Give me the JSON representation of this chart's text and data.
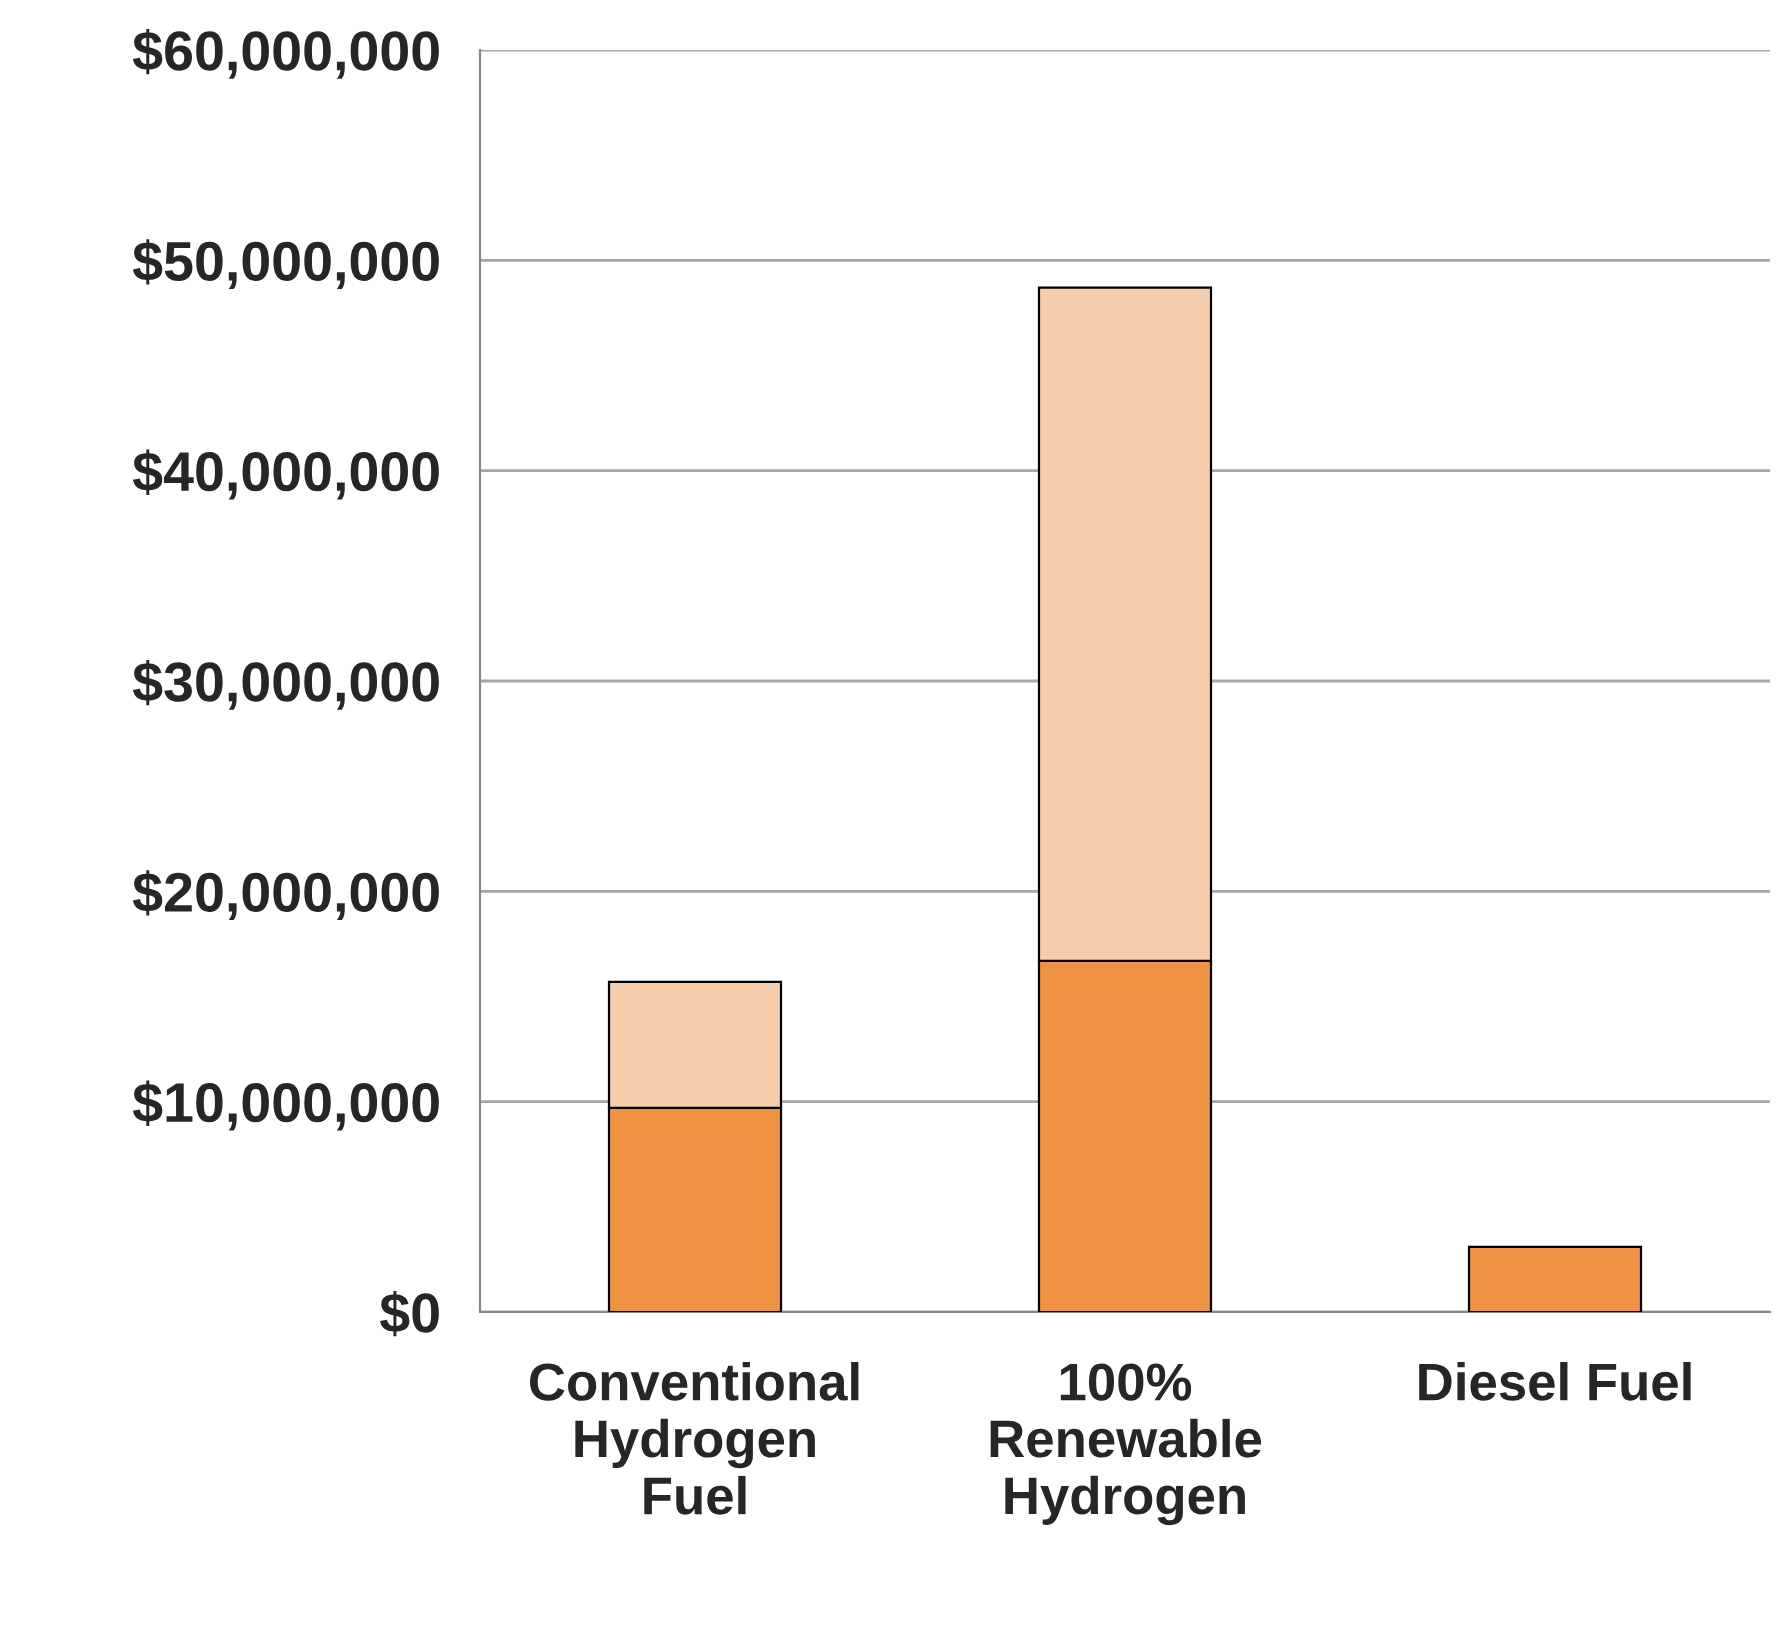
{
  "chart_data": {
    "type": "bar",
    "stacked": true,
    "categories": [
      "Conventional\nHydrogen\nFuel",
      "100%\nRenewable\nHydrogen",
      "Diesel Fuel"
    ],
    "series": [
      {
        "color": "#f09243",
        "values": [
          9700000,
          16700000,
          3100000
        ]
      },
      {
        "color": "#f7cead",
        "values": [
          6000000,
          32000000,
          null
        ]
      }
    ],
    "ylim": [
      0,
      60000000
    ],
    "yticks": [
      {
        "value": 0,
        "label": "$0"
      },
      {
        "value": 10000000,
        "label": "$10,000,000"
      },
      {
        "value": 20000000,
        "label": "$20,000,000"
      },
      {
        "value": 30000000,
        "label": "$30,000,000"
      },
      {
        "value": 40000000,
        "label": "$40,000,000"
      },
      {
        "value": 50000000,
        "label": "$50,000,000"
      },
      {
        "value": 60000000,
        "label": "$60,000,000"
      }
    ],
    "grid": "y",
    "legend": false
  }
}
